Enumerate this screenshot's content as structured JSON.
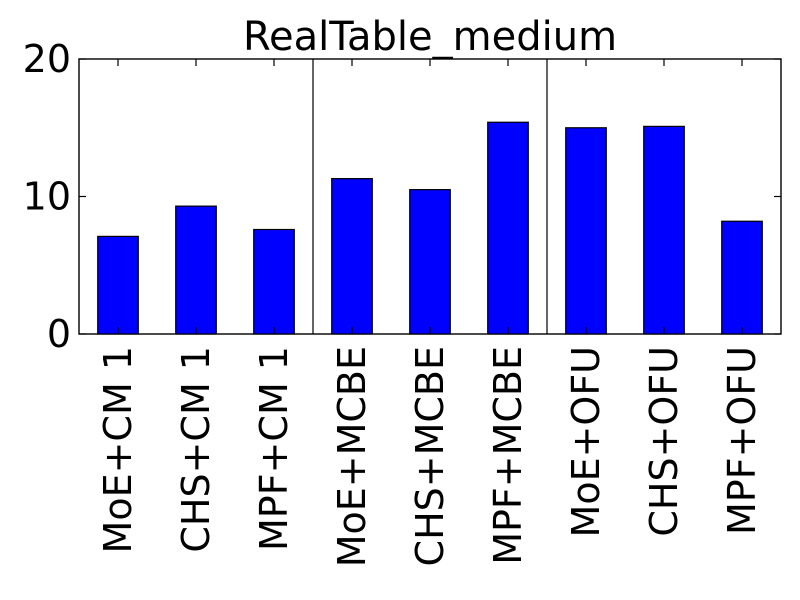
{
  "chart_data": {
    "type": "bar",
    "title": "RealTable_medium",
    "xlabel": "",
    "ylabel": "",
    "ylim": [
      0,
      20
    ],
    "yticks": [
      "0",
      "10",
      "20"
    ],
    "categories": [
      "MoE+CM 1",
      "CHS+CM 1",
      "MPF+CM 1",
      "MoE+MCBE",
      "CHS+MCBE",
      "MPF+MCBE",
      "MoE+OFU",
      "CHS+OFU",
      "MPF+OFU"
    ],
    "values": [
      7.1,
      9.3,
      7.6,
      11.3,
      10.5,
      15.4,
      15.0,
      15.1,
      8.2
    ],
    "group_separators_after": [
      3,
      6
    ],
    "grid": false,
    "legend": "none",
    "colors": {
      "bar": "#0000ff",
      "edge": "#000000",
      "axis": "#000000"
    }
  }
}
